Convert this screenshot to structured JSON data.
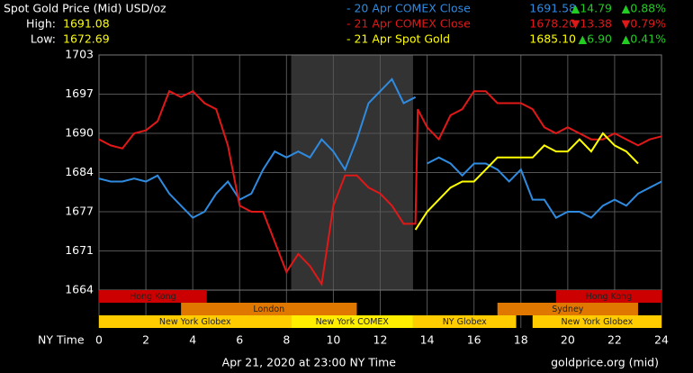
{
  "chart_data": {
    "type": "line",
    "title": "Spot Gold Price (Mid) USD/oz",
    "high_label": "High:",
    "high": "1691.08",
    "low_label": "Low:",
    "low": "1672.69",
    "legend": [
      {
        "name": "- 20 Apr COMEX Close",
        "price": "1691.58",
        "change": "▲14.79",
        "pct": "▲0.88%",
        "color": "#2f8be0",
        "change_color": "#22cc22"
      },
      {
        "name": "- 21 Apr COMEX Close",
        "price": "1678.20",
        "change": "▼13.38",
        "pct": "▼0.79%",
        "color": "#e01818",
        "change_color": "#e01818"
      },
      {
        "name": "- 21 Apr Spot Gold",
        "price": "1685.10",
        "change": "▲6.90",
        "pct": "▲0.41%",
        "color": "#ffff00",
        "change_color": "#22cc22"
      }
    ],
    "series": [
      {
        "name": "20 Apr COMEX Close",
        "color": "#2f8be0",
        "x": [
          0,
          0.5,
          1,
          1.5,
          2,
          2.5,
          3,
          3.5,
          4,
          4.5,
          5,
          5.5,
          6,
          6.5,
          7,
          7.5,
          8,
          8.5,
          9,
          9.5,
          10,
          10.5,
          11,
          11.5,
          12,
          12.5,
          13,
          13.5,
          13.6,
          14,
          14.5,
          15,
          15.5,
          16,
          16.5,
          17,
          17.5,
          18,
          18.5,
          19,
          19.5,
          20,
          20.5,
          21,
          21.5,
          22,
          22.5,
          23,
          23.5,
          24
        ],
        "values": [
          1682.5,
          1682,
          1682,
          1682.5,
          1682,
          1683,
          1680,
          1678,
          1676,
          1677,
          1680,
          1682,
          1679,
          1680,
          1684,
          1687,
          1686,
          1687,
          1686,
          1689,
          1687,
          1684,
          1689,
          1695,
          1697,
          1699,
          1695,
          1696,
          null,
          1685,
          1686,
          1685,
          1683,
          1685,
          1685,
          1684,
          1682,
          1684,
          1679,
          1679,
          1676,
          1677,
          1677,
          1676,
          1678,
          1679,
          1678,
          1680,
          1681,
          1682
        ]
      },
      {
        "name": "21 Apr COMEX Close",
        "color": "#e01818",
        "x": [
          0,
          0.5,
          1,
          1.5,
          2,
          2.5,
          3,
          3.5,
          4,
          4.5,
          5,
          5.5,
          6,
          6.5,
          7,
          7.5,
          8,
          8.5,
          9,
          9.5,
          10,
          10.5,
          11,
          11.5,
          12,
          12.5,
          13,
          13.5,
          13.6,
          14,
          14.5,
          15,
          15.5,
          16,
          16.5,
          17,
          17.5,
          18,
          18.5,
          19,
          19.5,
          20,
          20.5,
          21,
          21.5,
          22,
          22.5,
          23,
          23.5,
          24
        ],
        "values": [
          1689,
          1688,
          1687.5,
          1690,
          1690.5,
          1692,
          1697,
          1696,
          1697,
          1695,
          1694,
          1688,
          1678,
          1677,
          1677,
          1672,
          1667,
          1670,
          1668,
          1665,
          1678,
          1683,
          1683,
          1681,
          1680,
          1678,
          1675,
          1675,
          1694,
          1691,
          1689,
          1693,
          1694,
          1697,
          1697,
          1695,
          1695,
          1695,
          1694,
          1691,
          1690,
          1691,
          1690,
          1689,
          1689,
          1690,
          1689,
          1688,
          1689,
          1689.5
        ]
      },
      {
        "name": "21 Apr Spot Gold",
        "color": "#ffff00",
        "x": [
          13.5,
          14,
          14.5,
          15,
          15.5,
          16,
          16.5,
          17,
          17.5,
          18,
          18.5,
          19,
          19.5,
          20,
          20.5,
          21,
          21.5,
          22,
          22.5,
          23
        ],
        "values": [
          1674,
          1677,
          1679,
          1681,
          1682,
          1682,
          1684,
          1686,
          1686,
          1686,
          1686,
          1688,
          1687,
          1687,
          1689,
          1687,
          1690,
          1688,
          1687,
          1685
        ]
      }
    ],
    "xlim": [
      0,
      24
    ],
    "xticks": [
      0,
      2,
      4,
      6,
      8,
      10,
      12,
      14,
      16,
      18,
      20,
      22,
      24
    ],
    "xlabel": "NY Time",
    "ylim": [
      1664,
      1703
    ],
    "yticks": [
      1664,
      {
        "value": 1670.5,
        "label": "1671"
      },
      1677,
      {
        "value": 1683.5,
        "label": "1684"
      },
      1690,
      {
        "value": 1696.5,
        "label": "1697"
      },
      1703
    ],
    "grid": true,
    "session_rows": [
      [
        {
          "label": "Hong Kong",
          "start": 0,
          "end": 4.6,
          "color": "#cc0000"
        },
        {
          "label": "Hong Kong",
          "start": 19.5,
          "end": 24,
          "color": "#cc0000"
        }
      ],
      [
        {
          "label": "London",
          "start": 3.5,
          "end": 11,
          "color": "#e07800"
        },
        {
          "label": "Sydney",
          "start": 17,
          "end": 23,
          "color": "#e07800"
        }
      ],
      [
        {
          "label": "New York Globex",
          "start": 0,
          "end": 8.2,
          "color": "#ffcc00"
        },
        {
          "label": "New York COMEX",
          "start": 8.2,
          "end": 13.4,
          "color": "#ffee00"
        },
        {
          "label": "NY Globex",
          "start": 13.4,
          "end": 17.8,
          "color": "#ffcc00"
        },
        {
          "label": "New York Globex",
          "start": 18.5,
          "end": 24,
          "color": "#ffcc00"
        }
      ]
    ],
    "shade_session": "2.1",
    "footer": "Apr 21, 2020 at 23:00 NY Time",
    "source": "goldprice.org (mid)"
  }
}
